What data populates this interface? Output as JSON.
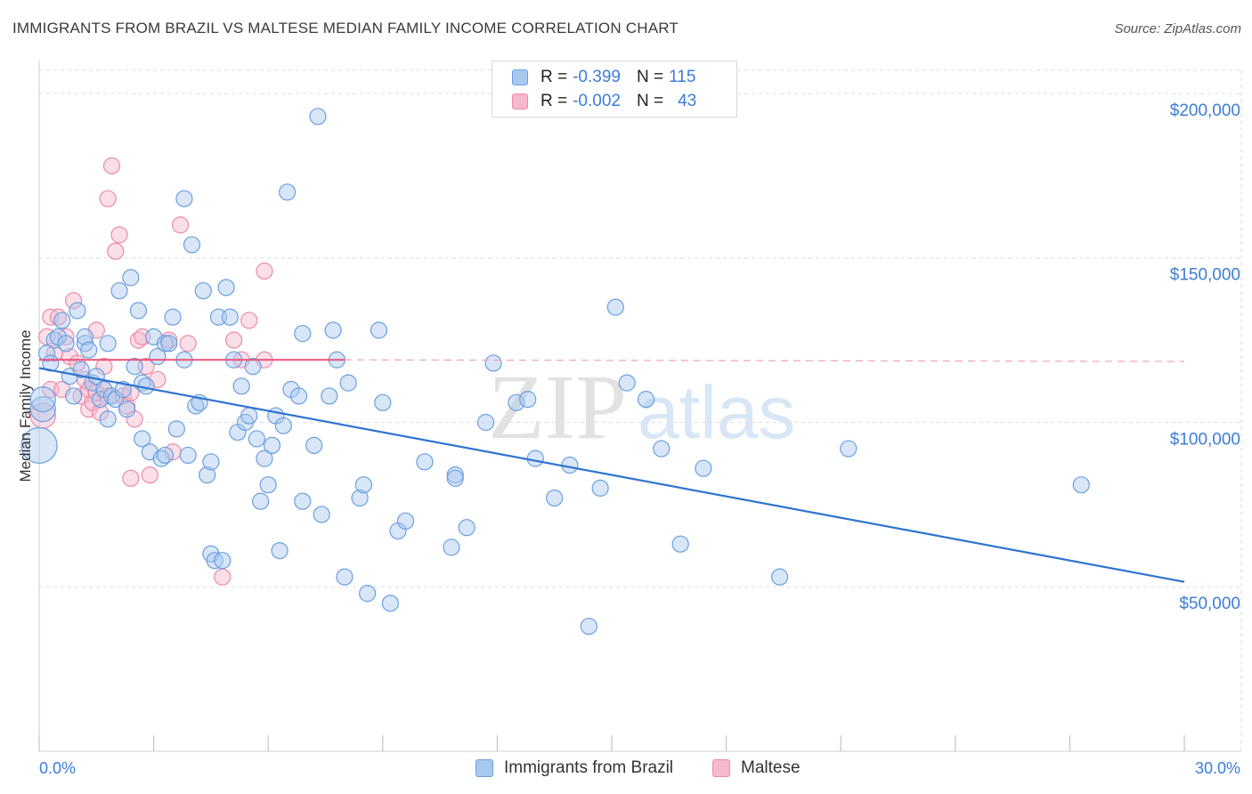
{
  "title": "IMMIGRANTS FROM BRAZIL VS MALTESE MEDIAN FAMILY INCOME CORRELATION CHART",
  "source": "Source: ZipAtlas.com",
  "watermark": {
    "zip": "ZIP",
    "atlas": "atlas"
  },
  "colors": {
    "blue_fill": "#a8c8f0",
    "blue_stroke": "#6a9fe0",
    "blue_line": "#2f74d0",
    "pink_fill": "#f6b8cc",
    "pink_stroke": "#ec8aa8",
    "pink_line": "#e8527a",
    "grid": "#dddddd",
    "tick_text": "#3b7dd8"
  },
  "legend": {
    "rows": [
      {
        "r_label": "R =",
        "r_value": "-0.399",
        "n_label": "N =",
        "n_value": "115"
      },
      {
        "r_label": "R =",
        "r_value": "-0.002",
        "n_label": "N =",
        "n_value": "43"
      }
    ]
  },
  "bottom_legend": {
    "series1": "Immigrants from Brazil",
    "series2": "Maltese"
  },
  "chart_data": {
    "type": "scatter",
    "title": "IMMIGRANTS FROM BRAZIL VS MALTESE MEDIAN FAMILY INCOME CORRELATION CHART",
    "xlabel": "",
    "ylabel": "Median Family Income",
    "xlim": [
      0,
      30
    ],
    "ylim": [
      0,
      210000
    ],
    "x_tick_labels": [
      "0.0%",
      "30.0%"
    ],
    "y_ticks": [
      50000,
      100000,
      150000,
      200000
    ],
    "y_tick_labels": [
      "$50,000",
      "$100,000",
      "$150,000",
      "$200,000"
    ],
    "series": [
      {
        "name": "Immigrants from Brazil",
        "color": "#a8c8f0",
        "trend": {
          "x": [
            0,
            30
          ],
          "y": [
            116500,
            51500
          ]
        },
        "points": [
          [
            0.0,
            93000,
            3
          ],
          [
            0.1,
            104000,
            2
          ],
          [
            0.1,
            107000,
            2
          ],
          [
            0.2,
            121000,
            1
          ],
          [
            0.3,
            118000,
            1
          ],
          [
            0.4,
            125000,
            1
          ],
          [
            0.5,
            126000,
            1
          ],
          [
            0.6,
            131000,
            1
          ],
          [
            0.7,
            124000,
            1
          ],
          [
            0.8,
            114000,
            1
          ],
          [
            0.9,
            108000,
            1
          ],
          [
            1.0,
            134000,
            1
          ],
          [
            1.1,
            116000,
            1
          ],
          [
            1.2,
            124000,
            1
          ],
          [
            1.2,
            126000,
            1
          ],
          [
            1.3,
            122000,
            1
          ],
          [
            1.4,
            112000,
            1
          ],
          [
            1.5,
            114000,
            1
          ],
          [
            1.6,
            107000,
            1
          ],
          [
            1.7,
            110000,
            1
          ],
          [
            1.8,
            124000,
            1
          ],
          [
            1.8,
            101000,
            1
          ],
          [
            1.9,
            108000,
            1
          ],
          [
            2.0,
            107000,
            1
          ],
          [
            2.1,
            140000,
            1
          ],
          [
            2.2,
            110000,
            1
          ],
          [
            2.3,
            104000,
            1
          ],
          [
            2.4,
            144000,
            1
          ],
          [
            2.5,
            117000,
            1
          ],
          [
            2.6,
            134000,
            1
          ],
          [
            2.7,
            95000,
            1
          ],
          [
            2.7,
            112000,
            1
          ],
          [
            2.8,
            111000,
            1
          ],
          [
            2.9,
            91000,
            1
          ],
          [
            3.0,
            126000,
            1
          ],
          [
            3.1,
            120000,
            1
          ],
          [
            3.2,
            89000,
            1
          ],
          [
            3.3,
            124000,
            1
          ],
          [
            3.3,
            90000,
            1
          ],
          [
            3.4,
            124000,
            1
          ],
          [
            3.5,
            132000,
            1
          ],
          [
            3.6,
            98000,
            1
          ],
          [
            3.8,
            168000,
            1
          ],
          [
            3.8,
            119000,
            1
          ],
          [
            3.9,
            90000,
            1
          ],
          [
            4.0,
            154000,
            1
          ],
          [
            4.1,
            105000,
            1
          ],
          [
            4.2,
            106000,
            1
          ],
          [
            4.3,
            140000,
            1
          ],
          [
            4.4,
            84000,
            1
          ],
          [
            4.5,
            88000,
            1
          ],
          [
            4.5,
            60000,
            1
          ],
          [
            4.6,
            58000,
            1
          ],
          [
            4.7,
            132000,
            1
          ],
          [
            4.8,
            58000,
            1
          ],
          [
            4.9,
            141000,
            1
          ],
          [
            5.0,
            132000,
            1
          ],
          [
            5.1,
            119000,
            1
          ],
          [
            5.2,
            97000,
            1
          ],
          [
            5.3,
            111000,
            1
          ],
          [
            5.4,
            100000,
            1
          ],
          [
            5.5,
            102000,
            1
          ],
          [
            5.6,
            117000,
            1
          ],
          [
            5.7,
            95000,
            1
          ],
          [
            5.8,
            76000,
            1
          ],
          [
            5.9,
            89000,
            1
          ],
          [
            6.0,
            81000,
            1
          ],
          [
            6.1,
            93000,
            1
          ],
          [
            6.2,
            102000,
            1
          ],
          [
            6.3,
            61000,
            1
          ],
          [
            6.4,
            99000,
            1
          ],
          [
            6.5,
            170000,
            1
          ],
          [
            6.6,
            110000,
            1
          ],
          [
            6.8,
            108000,
            1
          ],
          [
            6.9,
            127000,
            1
          ],
          [
            6.9,
            76000,
            1
          ],
          [
            7.2,
            93000,
            1
          ],
          [
            7.3,
            193000,
            1
          ],
          [
            7.4,
            72000,
            1
          ],
          [
            7.6,
            108000,
            1
          ],
          [
            7.7,
            128000,
            1
          ],
          [
            7.8,
            119000,
            1
          ],
          [
            8.0,
            53000,
            1
          ],
          [
            8.1,
            112000,
            1
          ],
          [
            8.4,
            77000,
            1
          ],
          [
            8.5,
            81000,
            1
          ],
          [
            8.6,
            48000,
            1
          ],
          [
            8.9,
            128000,
            1
          ],
          [
            9.0,
            106000,
            1
          ],
          [
            9.2,
            45000,
            1
          ],
          [
            9.4,
            67000,
            1
          ],
          [
            9.6,
            70000,
            1
          ],
          [
            10.1,
            88000,
            1
          ],
          [
            10.8,
            62000,
            1
          ],
          [
            10.9,
            84000,
            1
          ],
          [
            10.9,
            83000,
            1
          ],
          [
            11.2,
            68000,
            1
          ],
          [
            11.7,
            100000,
            1
          ],
          [
            11.9,
            118000,
            1
          ],
          [
            12.5,
            106000,
            1
          ],
          [
            12.8,
            107000,
            1
          ],
          [
            13.0,
            89000,
            1
          ],
          [
            13.5,
            77000,
            1
          ],
          [
            13.9,
            87000,
            1
          ],
          [
            14.4,
            38000,
            1
          ],
          [
            14.7,
            80000,
            1
          ],
          [
            15.1,
            135000,
            1
          ],
          [
            15.4,
            112000,
            1
          ],
          [
            15.9,
            107000,
            1
          ],
          [
            16.3,
            92000,
            1
          ],
          [
            16.8,
            63000,
            1
          ],
          [
            17.4,
            86000,
            1
          ],
          [
            19.4,
            53000,
            1
          ],
          [
            21.2,
            92000,
            1
          ],
          [
            27.3,
            81000,
            1
          ]
        ]
      },
      {
        "name": "Maltese",
        "color": "#f6b8cc",
        "trend": {
          "x": [
            0,
            8
          ],
          "y": [
            119000,
            119000
          ]
        },
        "trend_dashed": {
          "x": [
            8,
            30
          ],
          "y": [
            119000,
            118500
          ]
        },
        "points": [
          [
            0.1,
            102000,
            2
          ],
          [
            0.2,
            126000,
            1
          ],
          [
            0.3,
            110000,
            1
          ],
          [
            0.3,
            132000,
            1
          ],
          [
            0.4,
            121000,
            1
          ],
          [
            0.5,
            132000,
            1
          ],
          [
            0.6,
            110000,
            1
          ],
          [
            0.7,
            126000,
            1
          ],
          [
            0.8,
            120000,
            1
          ],
          [
            0.9,
            137000,
            1
          ],
          [
            1.0,
            118000,
            1
          ],
          [
            1.1,
            108000,
            1
          ],
          [
            1.2,
            113000,
            1
          ],
          [
            1.3,
            104000,
            1
          ],
          [
            1.3,
            110000,
            1
          ],
          [
            1.4,
            106000,
            1
          ],
          [
            1.5,
            109000,
            1
          ],
          [
            1.5,
            128000,
            1
          ],
          [
            1.6,
            103000,
            1
          ],
          [
            1.7,
            110000,
            1
          ],
          [
            1.7,
            117000,
            1
          ],
          [
            1.8,
            108000,
            1
          ],
          [
            1.8,
            168000,
            1
          ],
          [
            1.9,
            178000,
            1
          ],
          [
            2.0,
            152000,
            1
          ],
          [
            2.1,
            157000,
            1
          ],
          [
            2.2,
            108000,
            1
          ],
          [
            2.3,
            105000,
            1
          ],
          [
            2.4,
            109000,
            1
          ],
          [
            2.4,
            83000,
            1
          ],
          [
            2.5,
            101000,
            1
          ],
          [
            2.6,
            125000,
            1
          ],
          [
            2.7,
            126000,
            1
          ],
          [
            2.8,
            117000,
            1
          ],
          [
            2.9,
            84000,
            1
          ],
          [
            3.1,
            113000,
            1
          ],
          [
            3.4,
            125000,
            1
          ],
          [
            3.5,
            91000,
            1
          ],
          [
            3.7,
            160000,
            1
          ],
          [
            3.9,
            124000,
            1
          ],
          [
            4.8,
            53000,
            1
          ],
          [
            5.1,
            125000,
            1
          ],
          [
            5.3,
            119000,
            1
          ],
          [
            5.5,
            131000,
            1
          ],
          [
            5.9,
            119000,
            1
          ],
          [
            5.9,
            146000,
            1
          ]
        ]
      }
    ]
  }
}
